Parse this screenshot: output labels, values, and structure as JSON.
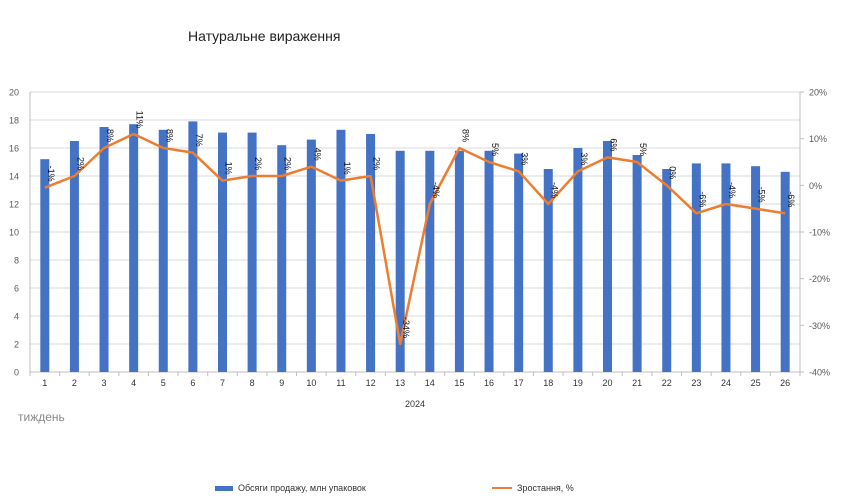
{
  "chart_data": {
    "type": "bar+line",
    "title": "Натуральне вираження",
    "xlabel": "2024",
    "x_unit_note": "тиждень",
    "categories": [
      "1",
      "2",
      "3",
      "4",
      "5",
      "6",
      "7",
      "8",
      "9",
      "10",
      "11",
      "12",
      "13",
      "14",
      "15",
      "16",
      "17",
      "18",
      "19",
      "20",
      "21",
      "22",
      "23",
      "24",
      "25",
      "26"
    ],
    "series": [
      {
        "name": "Обсяги продажу, млн упаковок",
        "type": "bar",
        "axis": "left",
        "color": "#4472C4",
        "values": [
          15.2,
          16.5,
          17.5,
          17.7,
          17.3,
          17.9,
          17.1,
          17.1,
          16.2,
          16.6,
          17.3,
          17.0,
          15.8,
          15.8,
          15.8,
          15.8,
          15.6,
          14.5,
          16.0,
          16.5,
          15.5,
          14.5,
          14.9,
          14.9,
          14.7,
          14.3
        ]
      },
      {
        "name": "Зростання, %",
        "type": "line",
        "axis": "right",
        "color": "#ED7D31",
        "values": [
          -0.005,
          0.02,
          0.08,
          0.11,
          0.08,
          0.07,
          0.01,
          0.02,
          0.02,
          0.04,
          0.01,
          0.02,
          -0.34,
          -0.04,
          0.08,
          0.05,
          0.03,
          -0.04,
          0.03,
          0.06,
          0.05,
          0.0,
          -0.06,
          -0.04,
          -0.05,
          -0.06
        ],
        "data_labels": [
          "-1%",
          "2%",
          "8%",
          "11%",
          "8%",
          "7%",
          "1%",
          "2%",
          "2%",
          "4%",
          "1%",
          "2%",
          "-34%",
          "-4%",
          "8%",
          "5%",
          "3%",
          "-4%",
          "3%",
          "6%",
          "5%",
          "0%",
          "-6%",
          "-4%",
          "-5%",
          "-6%"
        ]
      }
    ],
    "y_left": {
      "min": 0,
      "max": 20,
      "step": 2,
      "ticks": [
        "0",
        "2",
        "4",
        "6",
        "8",
        "10",
        "12",
        "14",
        "16",
        "18",
        "20"
      ]
    },
    "y_right": {
      "min": -0.4,
      "max": 0.2,
      "step": 0.1,
      "ticks": [
        "-40%",
        "-30%",
        "-20%",
        "-10%",
        "0%",
        "10%",
        "20%"
      ]
    },
    "gridlines": true,
    "legend_position": "bottom"
  }
}
